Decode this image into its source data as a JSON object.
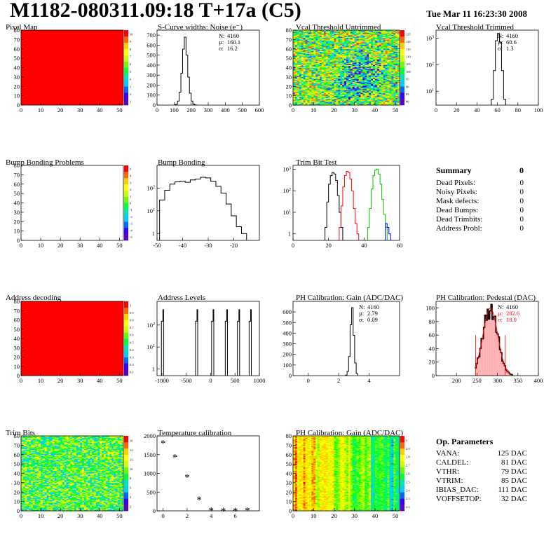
{
  "header": {
    "title": "M1182-080311.09:18 T+17a (C5)",
    "timestamp": "Tue Mar 11 16:23:30 2008"
  },
  "colors": {
    "map_red": "#ff0000",
    "palette": [
      "#5a00c8",
      "#3300ff",
      "#0066ff",
      "#00ccff",
      "#00e6b0",
      "#00ff33",
      "#66ff00",
      "#ccff00",
      "#ffff00",
      "#ffcc00",
      "#ff6600",
      "#ff0000"
    ]
  },
  "summary": {
    "title": "Summary",
    "title_value": "0",
    "rows": [
      {
        "label": "Dead Pixels:",
        "value": "0"
      },
      {
        "label": "Noisy Pixels:",
        "value": "0"
      },
      {
        "label": "Mask defects:",
        "value": "0"
      },
      {
        "label": "Dead Bumps:",
        "value": "0"
      },
      {
        "label": "Dead Trimbits:",
        "value": "0"
      },
      {
        "label": "Address Probl:",
        "value": "0"
      }
    ]
  },
  "op_params": {
    "title": "Op. Parameters",
    "rows": [
      {
        "label": "VANA:",
        "value": "125 DAC"
      },
      {
        "label": "CALDEL:",
        "value": "81 DAC"
      },
      {
        "label": "VTHR:",
        "value": "79 DAC"
      },
      {
        "label": "VTRIM:",
        "value": "85 DAC"
      },
      {
        "label": "IBIAS_DAC:",
        "value": "111 DAC"
      },
      {
        "label": "VOFFSETOP:",
        "value": "32 DAC"
      }
    ]
  },
  "chart_data": [
    {
      "id": "pixel_map",
      "type": "heatmap",
      "title": "Pixel Map",
      "mode": "uniform",
      "fill": "#ff0000",
      "xlim": [
        0,
        52
      ],
      "ylim": [
        0,
        80
      ],
      "xticks": [
        0,
        10,
        20,
        30,
        40,
        50
      ],
      "yticks": [
        0,
        10,
        20,
        30,
        40,
        50,
        60,
        70,
        80
      ],
      "zticks": [
        "1",
        "2",
        "3",
        "4",
        "5",
        "6",
        "7",
        "8",
        "9",
        "10"
      ]
    },
    {
      "id": "scurve_noise",
      "type": "histogram",
      "title": "S-Curve widths: Noise (e⁻)",
      "xlim": [
        0,
        600
      ],
      "ylim": [
        0,
        750
      ],
      "xticks": [
        0,
        100,
        200,
        300,
        400,
        500,
        600
      ],
      "yticks": [
        0,
        100,
        200,
        300,
        400,
        500,
        600,
        700
      ],
      "series": [
        {
          "color": "#000000",
          "edges": [
            100,
            110,
            120,
            130,
            140,
            150,
            160,
            170,
            180,
            190,
            200,
            210,
            220,
            230
          ],
          "values": [
            3,
            10,
            40,
            130,
            320,
            560,
            680,
            500,
            280,
            120,
            40,
            10,
            3
          ]
        }
      ],
      "stats": [
        {
          "label": "N:",
          "value": "4160"
        },
        {
          "label": "µ:",
          "value": "160.1"
        },
        {
          "label": "σ:",
          "value": "16.2"
        }
      ]
    },
    {
      "id": "vcal_untrimmed",
      "type": "heatmap",
      "title": "Vcal Threshold Untrimmed",
      "mode": "noise",
      "seed": 11,
      "mean": 0.55,
      "spread": 0.35,
      "dip": 0.25,
      "xlim": [
        0,
        52
      ],
      "ylim": [
        0,
        80
      ],
      "xticks": [
        0,
        10,
        20,
        30,
        40,
        50
      ],
      "yticks": [
        0,
        10,
        20,
        30,
        40,
        50,
        60,
        70,
        80
      ],
      "zticks": [
        "80",
        "85",
        "90",
        "95",
        "100",
        "105",
        "110",
        "115",
        "120",
        "125"
      ]
    },
    {
      "id": "vcal_trimmed",
      "type": "histogram",
      "title": "Vcal Threshold Trimmed",
      "log": true,
      "xlim": [
        0,
        100
      ],
      "ylim": [
        3,
        2000
      ],
      "xticks": [
        0,
        20,
        40,
        60,
        80,
        100
      ],
      "yticks": [
        10,
        100,
        1000
      ],
      "series": [
        {
          "color": "#000000",
          "edges": [
            54,
            56,
            58,
            60,
            62,
            64,
            66,
            68
          ],
          "values": [
            5,
            60,
            800,
            1500,
            700,
            60,
            5
          ]
        }
      ],
      "stats": [
        {
          "label": "N:",
          "value": "4160"
        },
        {
          "label": "µ:",
          "value": "60.6"
        },
        {
          "label": "σ:",
          "value": "1.3"
        }
      ]
    },
    {
      "id": "bump_problems",
      "type": "heatmap",
      "title": "Bump Bonding Problems",
      "mode": "empty",
      "xlim": [
        0,
        52
      ],
      "ylim": [
        0,
        80
      ],
      "xticks": [
        0,
        10,
        20,
        30,
        40,
        50
      ],
      "yticks": [
        0,
        10,
        20,
        30,
        40,
        50,
        60,
        70,
        80
      ],
      "zticks": [
        "-5",
        "-4",
        "-3",
        "-2",
        "-1",
        "0",
        "1",
        "2",
        "3",
        "4",
        "5"
      ]
    },
    {
      "id": "bump_bonding",
      "type": "histogram",
      "title": "Bump Bonding",
      "log": true,
      "xlim": [
        -50,
        -10
      ],
      "ylim": [
        0.5,
        1000
      ],
      "xticks": [
        -50,
        -40,
        -30,
        -20
      ],
      "yticks": [
        1,
        10,
        100
      ],
      "series": [
        {
          "color": "#000000",
          "edges": [
            -49,
            -47,
            -45,
            -43,
            -41,
            -39,
            -37,
            -35,
            -33,
            -31,
            -29,
            -27,
            -25,
            -23,
            -21,
            -19,
            -17,
            -15
          ],
          "values": [
            30,
            80,
            150,
            190,
            200,
            180,
            230,
            250,
            300,
            280,
            200,
            120,
            60,
            20,
            6,
            2,
            1
          ]
        }
      ]
    },
    {
      "id": "trim_bit_test",
      "type": "histogram",
      "title": "Trim Bit Test",
      "log": true,
      "xlim": [
        0,
        60
      ],
      "ylim": [
        0.5,
        1500
      ],
      "xticks": [
        0,
        20,
        40,
        60
      ],
      "yticks": [
        1,
        10,
        100,
        1000
      ],
      "series": [
        {
          "color": "#000000",
          "edges": [
            18,
            19,
            20,
            21,
            22,
            23,
            24,
            25,
            26,
            27,
            28
          ],
          "values": [
            2,
            30,
            200,
            500,
            700,
            600,
            300,
            60,
            10,
            2
          ]
        },
        {
          "color": "#ff0000",
          "edges": [
            26,
            27,
            28,
            29,
            30,
            31,
            32,
            33,
            34,
            35,
            36,
            37
          ],
          "values": [
            2,
            20,
            150,
            500,
            800,
            700,
            350,
            100,
            15,
            3,
            1
          ]
        },
        {
          "color": "#00c000",
          "edges": [
            42,
            43,
            44,
            45,
            46,
            47,
            48,
            49,
            50,
            51,
            52,
            53
          ],
          "values": [
            2,
            15,
            120,
            500,
            900,
            1000,
            600,
            200,
            40,
            8,
            2
          ]
        },
        {
          "color": "#0000ff",
          "edges": [
            52,
            53,
            54,
            55
          ],
          "values": [
            3,
            2,
            1
          ]
        }
      ]
    },
    {
      "id": "address_decoding",
      "type": "heatmap",
      "title": "Address decoding",
      "mode": "uniform",
      "fill": "#ff0000",
      "xlim": [
        0,
        52
      ],
      "ylim": [
        0,
        80
      ],
      "xticks": [
        0,
        10,
        20,
        30,
        40,
        50
      ],
      "yticks": [
        0,
        10,
        20,
        30,
        40,
        50,
        60,
        70,
        80
      ],
      "zticks": [
        "0.1",
        "0.2",
        "0.3",
        "0.4",
        "0.5",
        "0.6",
        "0.7",
        "0.8",
        "0.9",
        "1"
      ]
    },
    {
      "id": "address_levels",
      "type": "histogram",
      "title": "Address Levels",
      "log": true,
      "xlim": [
        -1100,
        1000
      ],
      "ylim": [
        0.5,
        1200
      ],
      "xticks": [
        -1000,
        -500,
        0,
        500,
        1000
      ],
      "yticks": [
        1,
        10,
        100
      ],
      "series": [
        {
          "color": "#000000",
          "peaks": [
            -980,
            -280,
            50,
            330,
            580,
            820
          ],
          "height": 500,
          "width": 30
        }
      ]
    },
    {
      "id": "ph_gain",
      "type": "histogram",
      "title": "PH Calibration: Gain (ADC/DAC)",
      "xlim": [
        -1,
        6
      ],
      "ylim": [
        0,
        700
      ],
      "xticks": [
        0,
        2,
        4
      ],
      "yticks": [
        0,
        100,
        200,
        300,
        400,
        500,
        600
      ],
      "series": [
        {
          "color": "#000000",
          "edges": [
            2.45,
            2.55,
            2.65,
            2.75,
            2.85,
            2.95,
            3.05,
            3.15,
            3.25
          ],
          "values": [
            5,
            40,
            180,
            480,
            640,
            380,
            120,
            20
          ]
        }
      ],
      "stats": [
        {
          "label": "N:",
          "value": "4160"
        },
        {
          "label": "µ:",
          "value": "2.79"
        },
        {
          "label": "σ:",
          "value": "0.09"
        }
      ]
    },
    {
      "id": "ph_pedestal",
      "type": "histogram",
      "title": "PH Calibration: Pedestal (DAC)",
      "xlim": [
        150,
        400
      ],
      "ylim": [
        0,
        110
      ],
      "xticks": [
        200,
        250,
        300,
        350,
        400
      ],
      "yticks": [
        0,
        20,
        40,
        60,
        80,
        100
      ],
      "fit": "gaussian",
      "fit_color": "#ff0000",
      "mu": 282.6,
      "sigma": 18.0,
      "stats": [
        {
          "label": "N:",
          "value": "4160"
        },
        {
          "label": "µ:",
          "value": "282.6",
          "color": "#ff0000"
        },
        {
          "label": "σ:",
          "value": "18.0",
          "color": "#ff0000"
        }
      ]
    },
    {
      "id": "trim_bits",
      "type": "heatmap",
      "title": "Trim Bits",
      "mode": "noise",
      "seed": 5,
      "mean": 0.5,
      "spread": 0.25,
      "dip": 0,
      "xlim": [
        0,
        52
      ],
      "ylim": [
        0,
        80
      ],
      "xticks": [
        0,
        10,
        20,
        30,
        40,
        50
      ],
      "yticks": [
        0,
        10,
        20,
        30,
        40,
        50,
        60,
        70,
        80
      ],
      "zticks": [
        "2",
        "4",
        "6",
        "8",
        "10",
        "12",
        "14",
        "16"
      ]
    },
    {
      "id": "temperature_calibration",
      "type": "scatter",
      "title": "Temperature calibration",
      "marker": "*",
      "xlim": [
        -0.5,
        8
      ],
      "ylim": [
        0,
        2000
      ],
      "xticks": [
        0,
        2,
        4,
        6
      ],
      "yticks": [
        0,
        500,
        1000,
        1500,
        2000
      ],
      "x": [
        0,
        1,
        2,
        3,
        4,
        5,
        6,
        7
      ],
      "y": [
        1820,
        1450,
        920,
        320,
        30,
        20,
        20,
        25
      ]
    },
    {
      "id": "ph_gain_map",
      "type": "heatmap",
      "title": "PH Calibration: Gain (ADC/DAC)",
      "mode": "columns",
      "seed": 7,
      "xlim": [
        0,
        52
      ],
      "ylim": [
        0,
        80
      ],
      "xticks": [
        0,
        10,
        20,
        30,
        40,
        50
      ],
      "yticks": [
        0,
        10,
        20,
        30,
        40,
        50,
        60,
        70,
        80
      ],
      "zticks": [
        "2.2",
        "2.3",
        "2.4",
        "2.5",
        "2.6",
        "2.7",
        "2.8",
        "2.9",
        "3"
      ]
    }
  ]
}
